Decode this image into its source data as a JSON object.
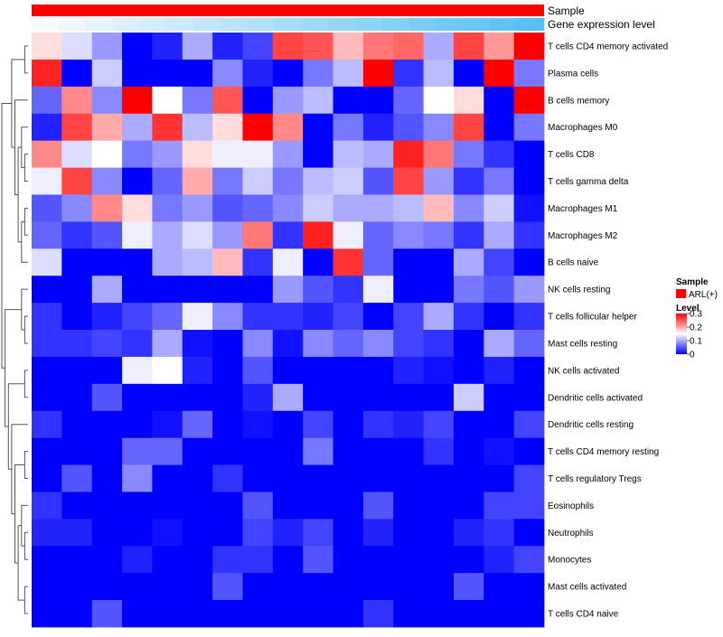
{
  "chart_data": {
    "type": "heatmap",
    "title": "",
    "annotations": [
      {
        "name": "Sample",
        "label": "Sample"
      },
      {
        "name": "Gene expression level",
        "label": "Gene expression level"
      }
    ],
    "gene_expression_level": [
      0.0,
      0.05,
      0.1,
      0.15,
      0.2,
      0.25,
      0.3,
      0.35,
      0.4,
      0.45,
      0.5,
      0.55,
      0.6,
      0.65,
      0.7,
      0.75,
      0.8,
      0.85,
      0.9
    ],
    "rows": [
      "T cells CD4 memory activated",
      "Plasma cells",
      "B cells memory",
      "Macrophages M0",
      "T cells CD8",
      "T cells gamma delta",
      "Macrophages M1",
      "Macrophages M2",
      "B cells naive",
      "NK cells resting",
      "T cells follicular helper",
      "Mast cells resting",
      "NK cells activated",
      "Dendritic cells activated",
      "Dendritic cells resting",
      "T cells CD4 memory resting",
      "T cells regulatory  Tregs",
      "Eosinophils",
      "Neutrophils",
      "Monocytes",
      "Mast cells activated",
      "T cells CD4 naive"
    ],
    "values": [
      [
        0.17,
        0.13,
        0.09,
        0.0,
        0.02,
        0.1,
        0.02,
        0.04,
        0.26,
        0.25,
        0.19,
        0.23,
        0.24,
        0.1,
        0.26,
        0.21,
        0.3
      ],
      [
        0.28,
        0.0,
        0.12,
        0.0,
        0.0,
        0.0,
        0.08,
        0.02,
        0.0,
        0.07,
        0.11,
        0.3,
        0.03,
        0.11,
        0.0,
        0.3,
        0.07
      ],
      [
        0.06,
        0.22,
        0.08,
        0.3,
        0.15,
        0.07,
        0.25,
        0.0,
        0.09,
        0.11,
        0.0,
        0.0,
        0.06,
        0.15,
        0.17,
        0.0,
        0.3
      ],
      [
        0.02,
        0.26,
        0.2,
        0.1,
        0.27,
        0.11,
        0.17,
        0.3,
        0.22,
        0.0,
        0.07,
        0.02,
        0.05,
        0.08,
        0.26,
        0.0,
        0.07
      ],
      [
        0.22,
        0.13,
        0.15,
        0.07,
        0.09,
        0.17,
        0.14,
        0.14,
        0.09,
        0.0,
        0.11,
        0.1,
        0.28,
        0.23,
        0.07,
        0.03,
        0.0
      ],
      [
        0.14,
        0.26,
        0.08,
        0.0,
        0.06,
        0.2,
        0.07,
        0.12,
        0.07,
        0.11,
        0.12,
        0.05,
        0.26,
        0.09,
        0.03,
        0.07,
        0.0
      ],
      [
        0.05,
        0.08,
        0.22,
        0.17,
        0.07,
        0.09,
        0.05,
        0.06,
        0.08,
        0.12,
        0.1,
        0.1,
        0.11,
        0.19,
        0.08,
        0.12,
        0.01
      ],
      [
        0.06,
        0.03,
        0.05,
        0.14,
        0.1,
        0.13,
        0.09,
        0.23,
        0.03,
        0.28,
        0.14,
        0.06,
        0.08,
        0.07,
        0.03,
        0.1,
        0.03
      ],
      [
        0.13,
        0.0,
        0.0,
        0.0,
        0.1,
        0.11,
        0.19,
        0.03,
        0.14,
        0.0,
        0.27,
        0.06,
        0.0,
        0.0,
        0.1,
        0.04,
        0.0
      ],
      [
        0.0,
        0.0,
        0.1,
        0.0,
        0.0,
        0.0,
        0.0,
        0.0,
        0.09,
        0.05,
        0.03,
        0.14,
        0.0,
        0.0,
        0.07,
        0.05,
        0.09
      ],
      [
        0.03,
        0.0,
        0.02,
        0.04,
        0.06,
        0.14,
        0.08,
        0.03,
        0.03,
        0.02,
        0.04,
        0.0,
        0.04,
        0.1,
        0.03,
        0.0,
        0.03
      ],
      [
        0.03,
        0.03,
        0.04,
        0.03,
        0.1,
        0.01,
        0.0,
        0.08,
        0.01,
        0.08,
        0.06,
        0.08,
        0.04,
        0.03,
        0.0,
        0.1,
        0.06
      ],
      [
        0.0,
        0.0,
        0.0,
        0.14,
        0.15,
        0.02,
        0.0,
        0.05,
        0.0,
        0.0,
        0.0,
        0.0,
        0.02,
        0.01,
        0.0,
        0.02,
        0.0
      ],
      [
        0.0,
        0.0,
        0.05,
        0.0,
        0.0,
        0.0,
        0.0,
        0.02,
        0.1,
        0.0,
        0.0,
        0.0,
        0.0,
        0.0,
        0.12,
        0.0,
        0.0
      ],
      [
        0.03,
        0.0,
        0.0,
        0.0,
        0.01,
        0.06,
        0.0,
        0.01,
        0.0,
        0.04,
        0.0,
        0.03,
        0.02,
        0.04,
        0.0,
        0.0,
        0.04
      ],
      [
        0.0,
        0.0,
        0.0,
        0.06,
        0.06,
        0.0,
        0.0,
        0.0,
        0.0,
        0.07,
        0.0,
        0.0,
        0.0,
        0.03,
        0.0,
        0.01,
        0.0
      ],
      [
        0.0,
        0.05,
        0.0,
        0.08,
        0.0,
        0.0,
        0.03,
        0.0,
        0.0,
        0.0,
        0.0,
        0.0,
        0.0,
        0.0,
        0.0,
        0.0,
        0.04
      ],
      [
        0.03,
        0.0,
        0.0,
        0.0,
        0.0,
        0.0,
        0.0,
        0.05,
        0.0,
        0.0,
        0.0,
        0.05,
        0.0,
        0.0,
        0.0,
        0.04,
        0.04
      ],
      [
        0.02,
        0.02,
        0.0,
        0.0,
        0.01,
        0.0,
        0.0,
        0.04,
        0.02,
        0.04,
        0.0,
        0.02,
        0.0,
        0.0,
        0.02,
        0.03,
        0.0
      ],
      [
        0.0,
        0.0,
        0.0,
        0.02,
        0.0,
        0.0,
        0.03,
        0.03,
        0.0,
        0.05,
        0.0,
        0.0,
        0.0,
        0.0,
        0.0,
        0.02,
        0.04
      ],
      [
        0.0,
        0.0,
        0.0,
        0.0,
        0.0,
        0.0,
        0.05,
        0.0,
        0.0,
        0.0,
        0.0,
        0.0,
        0.0,
        0.0,
        0.05,
        0.0,
        0.0
      ],
      [
        0.0,
        0.0,
        0.05,
        0.0,
        0.0,
        0.0,
        0.0,
        0.0,
        0.0,
        0.0,
        0.0,
        0.03,
        0.0,
        0.0,
        0.0,
        0.0,
        0.0
      ]
    ],
    "color_range": [
      0,
      0.3
    ],
    "colors": {
      "low": "#0000ff",
      "mid": "#ffffff",
      "high": "#ff0000",
      "sample": "#ff0000"
    },
    "legend": {
      "sample_title": "Sample",
      "sample_item": "ARL(+)",
      "level_title": "Level",
      "ticks": [
        0.3,
        0.2,
        0.1,
        0
      ]
    }
  }
}
